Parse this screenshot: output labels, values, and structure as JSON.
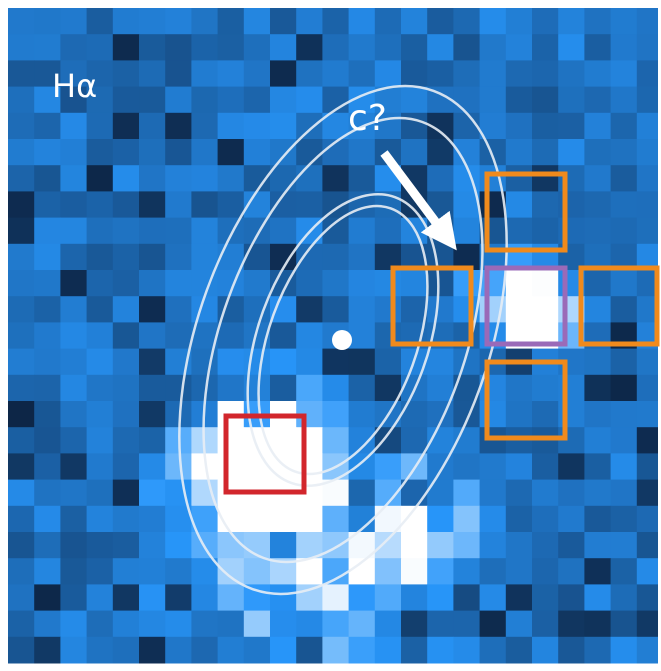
{
  "labels": {
    "band": "Hα",
    "candidate": "c?"
  }
}
